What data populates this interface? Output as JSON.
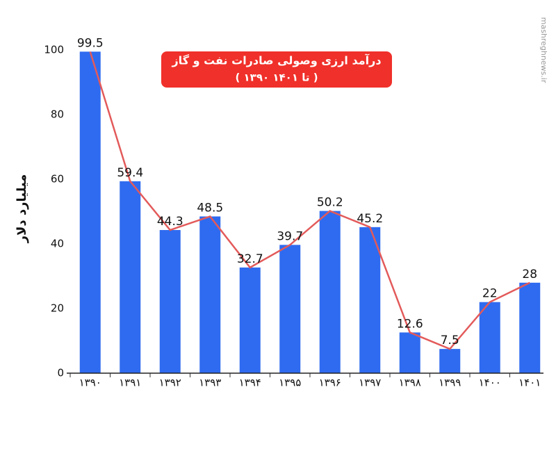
{
  "chart_data": {
    "type": "bar",
    "title": "درآمد ارزی وصولی صادرات نفت و گاز",
    "subtitle": "( ۱۳۹۰ تا ۱۴۰۱ )",
    "y_label": "میلیارد دلار",
    "watermark": "mashreghnews.ir",
    "categories": [
      "۱۳۹۰",
      "۱۳۹۱",
      "۱۳۹۲",
      "۱۳۹۳",
      "۱۳۹۴",
      "۱۳۹۵",
      "۱۳۹۶",
      "۱۳۹۷",
      "۱۳۹۸",
      "۱۳۹۹",
      "۱۴۰۰",
      "۱۴۰۱"
    ],
    "values": [
      99.5,
      59.4,
      44.3,
      48.5,
      32.7,
      39.7,
      50.2,
      45.2,
      12.6,
      7.5,
      22,
      28
    ],
    "color": "#2f6bf0",
    "line_overlay": true,
    "line_color": "#e35a5a",
    "title_box_color": "#f0302a",
    "ylim": [
      0,
      100
    ],
    "yticks": [
      0,
      20,
      40,
      60,
      80,
      100
    ],
    "grid": false
  }
}
